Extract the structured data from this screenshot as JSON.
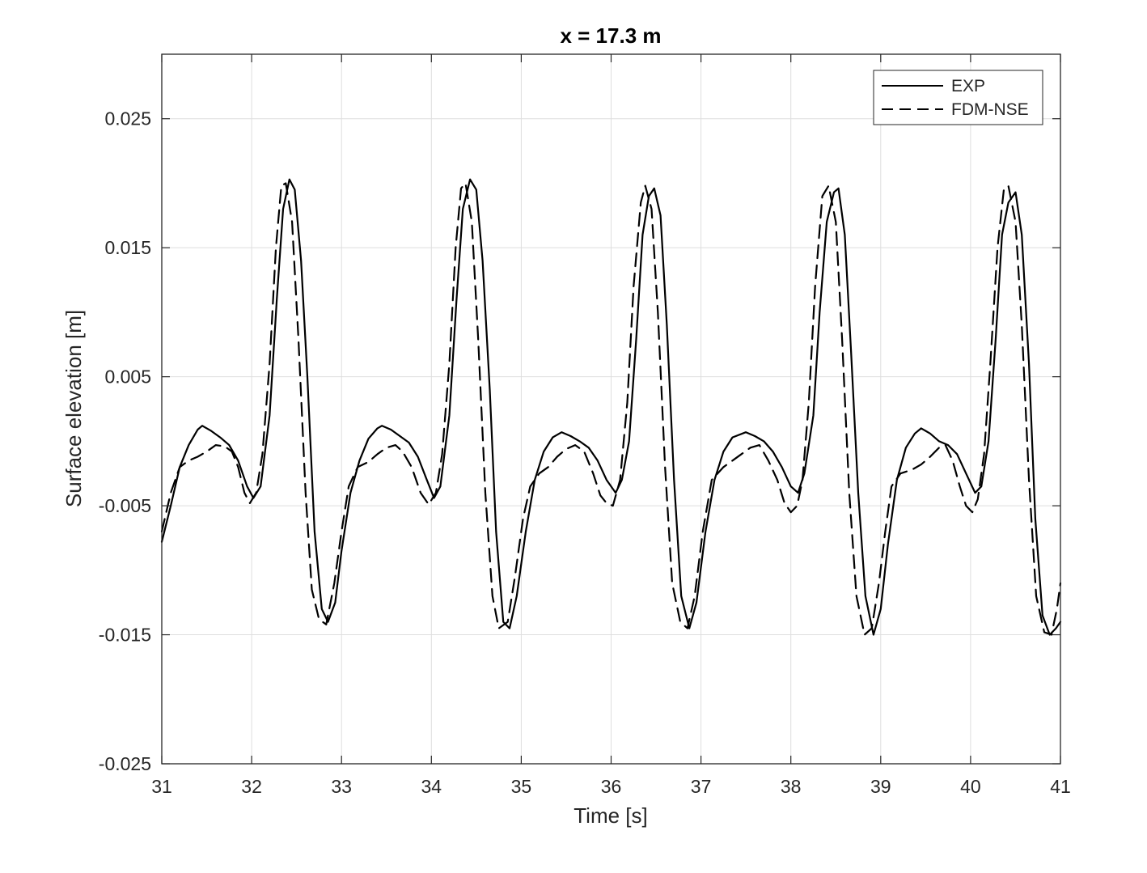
{
  "chart_data": {
    "type": "line",
    "title": "x = 17.3 m",
    "xlabel": "Time [s]",
    "ylabel": "Surface elevation [m]",
    "xlim": [
      31,
      41
    ],
    "ylim": [
      -0.025,
      0.03
    ],
    "xticks": [
      "31",
      "32",
      "33",
      "34",
      "35",
      "36",
      "37",
      "38",
      "39",
      "40",
      "41"
    ],
    "yticks": [
      "-0.025",
      "-0.015",
      "-0.005",
      "0.005",
      "0.015",
      "0.025"
    ],
    "grid": true,
    "legend_position": "top-right",
    "series": [
      {
        "name": "EXP",
        "style": "solid",
        "color": "#000000",
        "points": [
          [
            31.0,
            -0.0078
          ],
          [
            31.1,
            -0.005
          ],
          [
            31.2,
            -0.002
          ],
          [
            31.3,
            -0.0003
          ],
          [
            31.4,
            0.0009
          ],
          [
            31.45,
            0.0012
          ],
          [
            31.55,
            0.0008
          ],
          [
            31.65,
            0.0003
          ],
          [
            31.75,
            -0.0003
          ],
          [
            31.85,
            -0.0015
          ],
          [
            31.95,
            -0.0035
          ],
          [
            32.02,
            -0.0044
          ],
          [
            32.1,
            -0.0035
          ],
          [
            32.2,
            0.002
          ],
          [
            32.28,
            0.011
          ],
          [
            32.35,
            0.018
          ],
          [
            32.42,
            0.0203
          ],
          [
            32.48,
            0.0195
          ],
          [
            32.55,
            0.014
          ],
          [
            32.62,
            0.005
          ],
          [
            32.7,
            -0.007
          ],
          [
            32.78,
            -0.013
          ],
          [
            32.85,
            -0.014
          ],
          [
            32.93,
            -0.0125
          ],
          [
            33.0,
            -0.0085
          ],
          [
            33.1,
            -0.004
          ],
          [
            33.2,
            -0.0015
          ],
          [
            33.3,
            0.0002
          ],
          [
            33.4,
            0.001
          ],
          [
            33.45,
            0.0012
          ],
          [
            33.55,
            0.0009
          ],
          [
            33.65,
            0.0004
          ],
          [
            33.75,
            -0.0001
          ],
          [
            33.85,
            -0.0012
          ],
          [
            33.95,
            -0.003
          ],
          [
            34.03,
            -0.0044
          ],
          [
            34.1,
            -0.0035
          ],
          [
            34.2,
            0.002
          ],
          [
            34.28,
            0.011
          ],
          [
            34.35,
            0.018
          ],
          [
            34.43,
            0.0203
          ],
          [
            34.5,
            0.0195
          ],
          [
            34.57,
            0.014
          ],
          [
            34.65,
            0.004
          ],
          [
            34.72,
            -0.007
          ],
          [
            34.8,
            -0.014
          ],
          [
            34.87,
            -0.0145
          ],
          [
            34.95,
            -0.012
          ],
          [
            35.05,
            -0.007
          ],
          [
            35.15,
            -0.003
          ],
          [
            35.25,
            -0.0008
          ],
          [
            35.35,
            0.0003
          ],
          [
            35.45,
            0.0007
          ],
          [
            35.55,
            0.0004
          ],
          [
            35.65,
            0.0
          ],
          [
            35.75,
            -0.0005
          ],
          [
            35.85,
            -0.0015
          ],
          [
            35.95,
            -0.003
          ],
          [
            36.05,
            -0.004
          ],
          [
            36.12,
            -0.003
          ],
          [
            36.2,
            0.0
          ],
          [
            36.28,
            0.008
          ],
          [
            36.35,
            0.016
          ],
          [
            36.42,
            0.019
          ],
          [
            36.48,
            0.0196
          ],
          [
            36.55,
            0.0175
          ],
          [
            36.62,
            0.009
          ],
          [
            36.7,
            -0.003
          ],
          [
            36.78,
            -0.012
          ],
          [
            36.87,
            -0.0145
          ],
          [
            36.95,
            -0.0125
          ],
          [
            37.05,
            -0.007
          ],
          [
            37.15,
            -0.003
          ],
          [
            37.25,
            -0.0008
          ],
          [
            37.35,
            0.0003
          ],
          [
            37.5,
            0.0007
          ],
          [
            37.6,
            0.0004
          ],
          [
            37.7,
            0.0
          ],
          [
            37.8,
            -0.0008
          ],
          [
            37.9,
            -0.002
          ],
          [
            38.0,
            -0.0035
          ],
          [
            38.08,
            -0.004
          ],
          [
            38.15,
            -0.0025
          ],
          [
            38.25,
            0.002
          ],
          [
            38.32,
            0.01
          ],
          [
            38.4,
            0.017
          ],
          [
            38.48,
            0.0193
          ],
          [
            38.53,
            0.0196
          ],
          [
            38.6,
            0.016
          ],
          [
            38.67,
            0.007
          ],
          [
            38.75,
            -0.004
          ],
          [
            38.83,
            -0.012
          ],
          [
            38.92,
            -0.015
          ],
          [
            39.0,
            -0.013
          ],
          [
            39.08,
            -0.008
          ],
          [
            39.18,
            -0.003
          ],
          [
            39.28,
            -0.0005
          ],
          [
            39.38,
            0.0006
          ],
          [
            39.45,
            0.001
          ],
          [
            39.55,
            0.0006
          ],
          [
            39.65,
            0.0
          ],
          [
            39.75,
            -0.0003
          ],
          [
            39.85,
            -0.001
          ],
          [
            39.95,
            -0.0025
          ],
          [
            40.05,
            -0.004
          ],
          [
            40.12,
            -0.0035
          ],
          [
            40.2,
            0.0
          ],
          [
            40.28,
            0.008
          ],
          [
            40.35,
            0.016
          ],
          [
            40.42,
            0.0185
          ],
          [
            40.5,
            0.0193
          ],
          [
            40.57,
            0.016
          ],
          [
            40.65,
            0.006
          ],
          [
            40.72,
            -0.006
          ],
          [
            40.8,
            -0.0135
          ],
          [
            40.88,
            -0.015
          ],
          [
            40.95,
            -0.0145
          ],
          [
            41.0,
            -0.014
          ]
        ]
      },
      {
        "name": "FDM-NSE",
        "style": "dashed",
        "color": "#000000",
        "points": [
          [
            31.0,
            -0.007
          ],
          [
            31.1,
            -0.004
          ],
          [
            31.2,
            -0.002
          ],
          [
            31.3,
            -0.0015
          ],
          [
            31.4,
            -0.0012
          ],
          [
            31.5,
            -0.0008
          ],
          [
            31.6,
            -0.0003
          ],
          [
            31.7,
            -0.0004
          ],
          [
            31.78,
            -0.0008
          ],
          [
            31.85,
            -0.002
          ],
          [
            31.92,
            -0.004
          ],
          [
            31.98,
            -0.0048
          ],
          [
            32.05,
            -0.004
          ],
          [
            32.12,
            -0.001
          ],
          [
            32.2,
            0.006
          ],
          [
            32.27,
            0.015
          ],
          [
            32.33,
            0.0198
          ],
          [
            32.38,
            0.02
          ],
          [
            32.45,
            0.017
          ],
          [
            32.52,
            0.008
          ],
          [
            32.6,
            -0.004
          ],
          [
            32.67,
            -0.0115
          ],
          [
            32.75,
            -0.0138
          ],
          [
            32.83,
            -0.0142
          ],
          [
            32.92,
            -0.011
          ],
          [
            33.0,
            -0.007
          ],
          [
            33.08,
            -0.0035
          ],
          [
            33.18,
            -0.002
          ],
          [
            33.3,
            -0.0016
          ],
          [
            33.4,
            -0.001
          ],
          [
            33.5,
            -0.0005
          ],
          [
            33.6,
            -0.0003
          ],
          [
            33.68,
            -0.0008
          ],
          [
            33.78,
            -0.002
          ],
          [
            33.88,
            -0.004
          ],
          [
            33.97,
            -0.0049
          ],
          [
            34.05,
            -0.004
          ],
          [
            34.12,
            -0.001
          ],
          [
            34.2,
            0.006
          ],
          [
            34.27,
            0.015
          ],
          [
            34.33,
            0.0196
          ],
          [
            34.38,
            0.02
          ],
          [
            34.45,
            0.017
          ],
          [
            34.52,
            0.008
          ],
          [
            34.6,
            -0.004
          ],
          [
            34.68,
            -0.012
          ],
          [
            34.75,
            -0.0145
          ],
          [
            34.85,
            -0.014
          ],
          [
            34.93,
            -0.0105
          ],
          [
            35.02,
            -0.006
          ],
          [
            35.1,
            -0.0035
          ],
          [
            35.2,
            -0.0025
          ],
          [
            35.3,
            -0.002
          ],
          [
            35.4,
            -0.0012
          ],
          [
            35.5,
            -0.0006
          ],
          [
            35.6,
            -0.0003
          ],
          [
            35.7,
            -0.0008
          ],
          [
            35.8,
            -0.0025
          ],
          [
            35.88,
            -0.0042
          ],
          [
            35.95,
            -0.0048
          ],
          [
            36.02,
            -0.005
          ],
          [
            36.1,
            -0.003
          ],
          [
            36.18,
            0.003
          ],
          [
            36.25,
            0.012
          ],
          [
            36.33,
            0.0185
          ],
          [
            36.38,
            0.0198
          ],
          [
            36.45,
            0.018
          ],
          [
            36.52,
            0.01
          ],
          [
            36.6,
            -0.002
          ],
          [
            36.68,
            -0.011
          ],
          [
            36.77,
            -0.014
          ],
          [
            36.85,
            -0.0145
          ],
          [
            36.93,
            -0.012
          ],
          [
            37.02,
            -0.007
          ],
          [
            37.12,
            -0.003
          ],
          [
            37.25,
            -0.002
          ],
          [
            37.35,
            -0.0015
          ],
          [
            37.45,
            -0.001
          ],
          [
            37.55,
            -0.0005
          ],
          [
            37.65,
            -0.0003
          ],
          [
            37.75,
            -0.0015
          ],
          [
            37.85,
            -0.003
          ],
          [
            37.93,
            -0.0048
          ],
          [
            38.0,
            -0.0055
          ],
          [
            38.07,
            -0.005
          ],
          [
            38.13,
            -0.003
          ],
          [
            38.2,
            0.003
          ],
          [
            38.27,
            0.012
          ],
          [
            38.35,
            0.019
          ],
          [
            38.42,
            0.0198
          ],
          [
            38.5,
            0.017
          ],
          [
            38.57,
            0.008
          ],
          [
            38.65,
            -0.004
          ],
          [
            38.73,
            -0.012
          ],
          [
            38.82,
            -0.015
          ],
          [
            38.9,
            -0.0145
          ],
          [
            38.98,
            -0.011
          ],
          [
            39.05,
            -0.007
          ],
          [
            39.12,
            -0.0035
          ],
          [
            39.22,
            -0.0025
          ],
          [
            39.35,
            -0.0022
          ],
          [
            39.45,
            -0.0018
          ],
          [
            39.55,
            -0.0012
          ],
          [
            39.65,
            -0.0005
          ],
          [
            39.72,
            -0.0003
          ],
          [
            39.8,
            -0.0015
          ],
          [
            39.88,
            -0.0035
          ],
          [
            39.95,
            -0.005
          ],
          [
            40.02,
            -0.0055
          ],
          [
            40.08,
            -0.0045
          ],
          [
            40.15,
            -0.001
          ],
          [
            40.22,
            0.006
          ],
          [
            40.3,
            0.015
          ],
          [
            40.37,
            0.0195
          ],
          [
            40.42,
            0.0198
          ],
          [
            40.5,
            0.017
          ],
          [
            40.57,
            0.009
          ],
          [
            40.65,
            -0.003
          ],
          [
            40.73,
            -0.012
          ],
          [
            40.82,
            -0.0148
          ],
          [
            40.9,
            -0.015
          ],
          [
            40.96,
            -0.013
          ],
          [
            41.0,
            -0.011
          ]
        ]
      }
    ]
  }
}
